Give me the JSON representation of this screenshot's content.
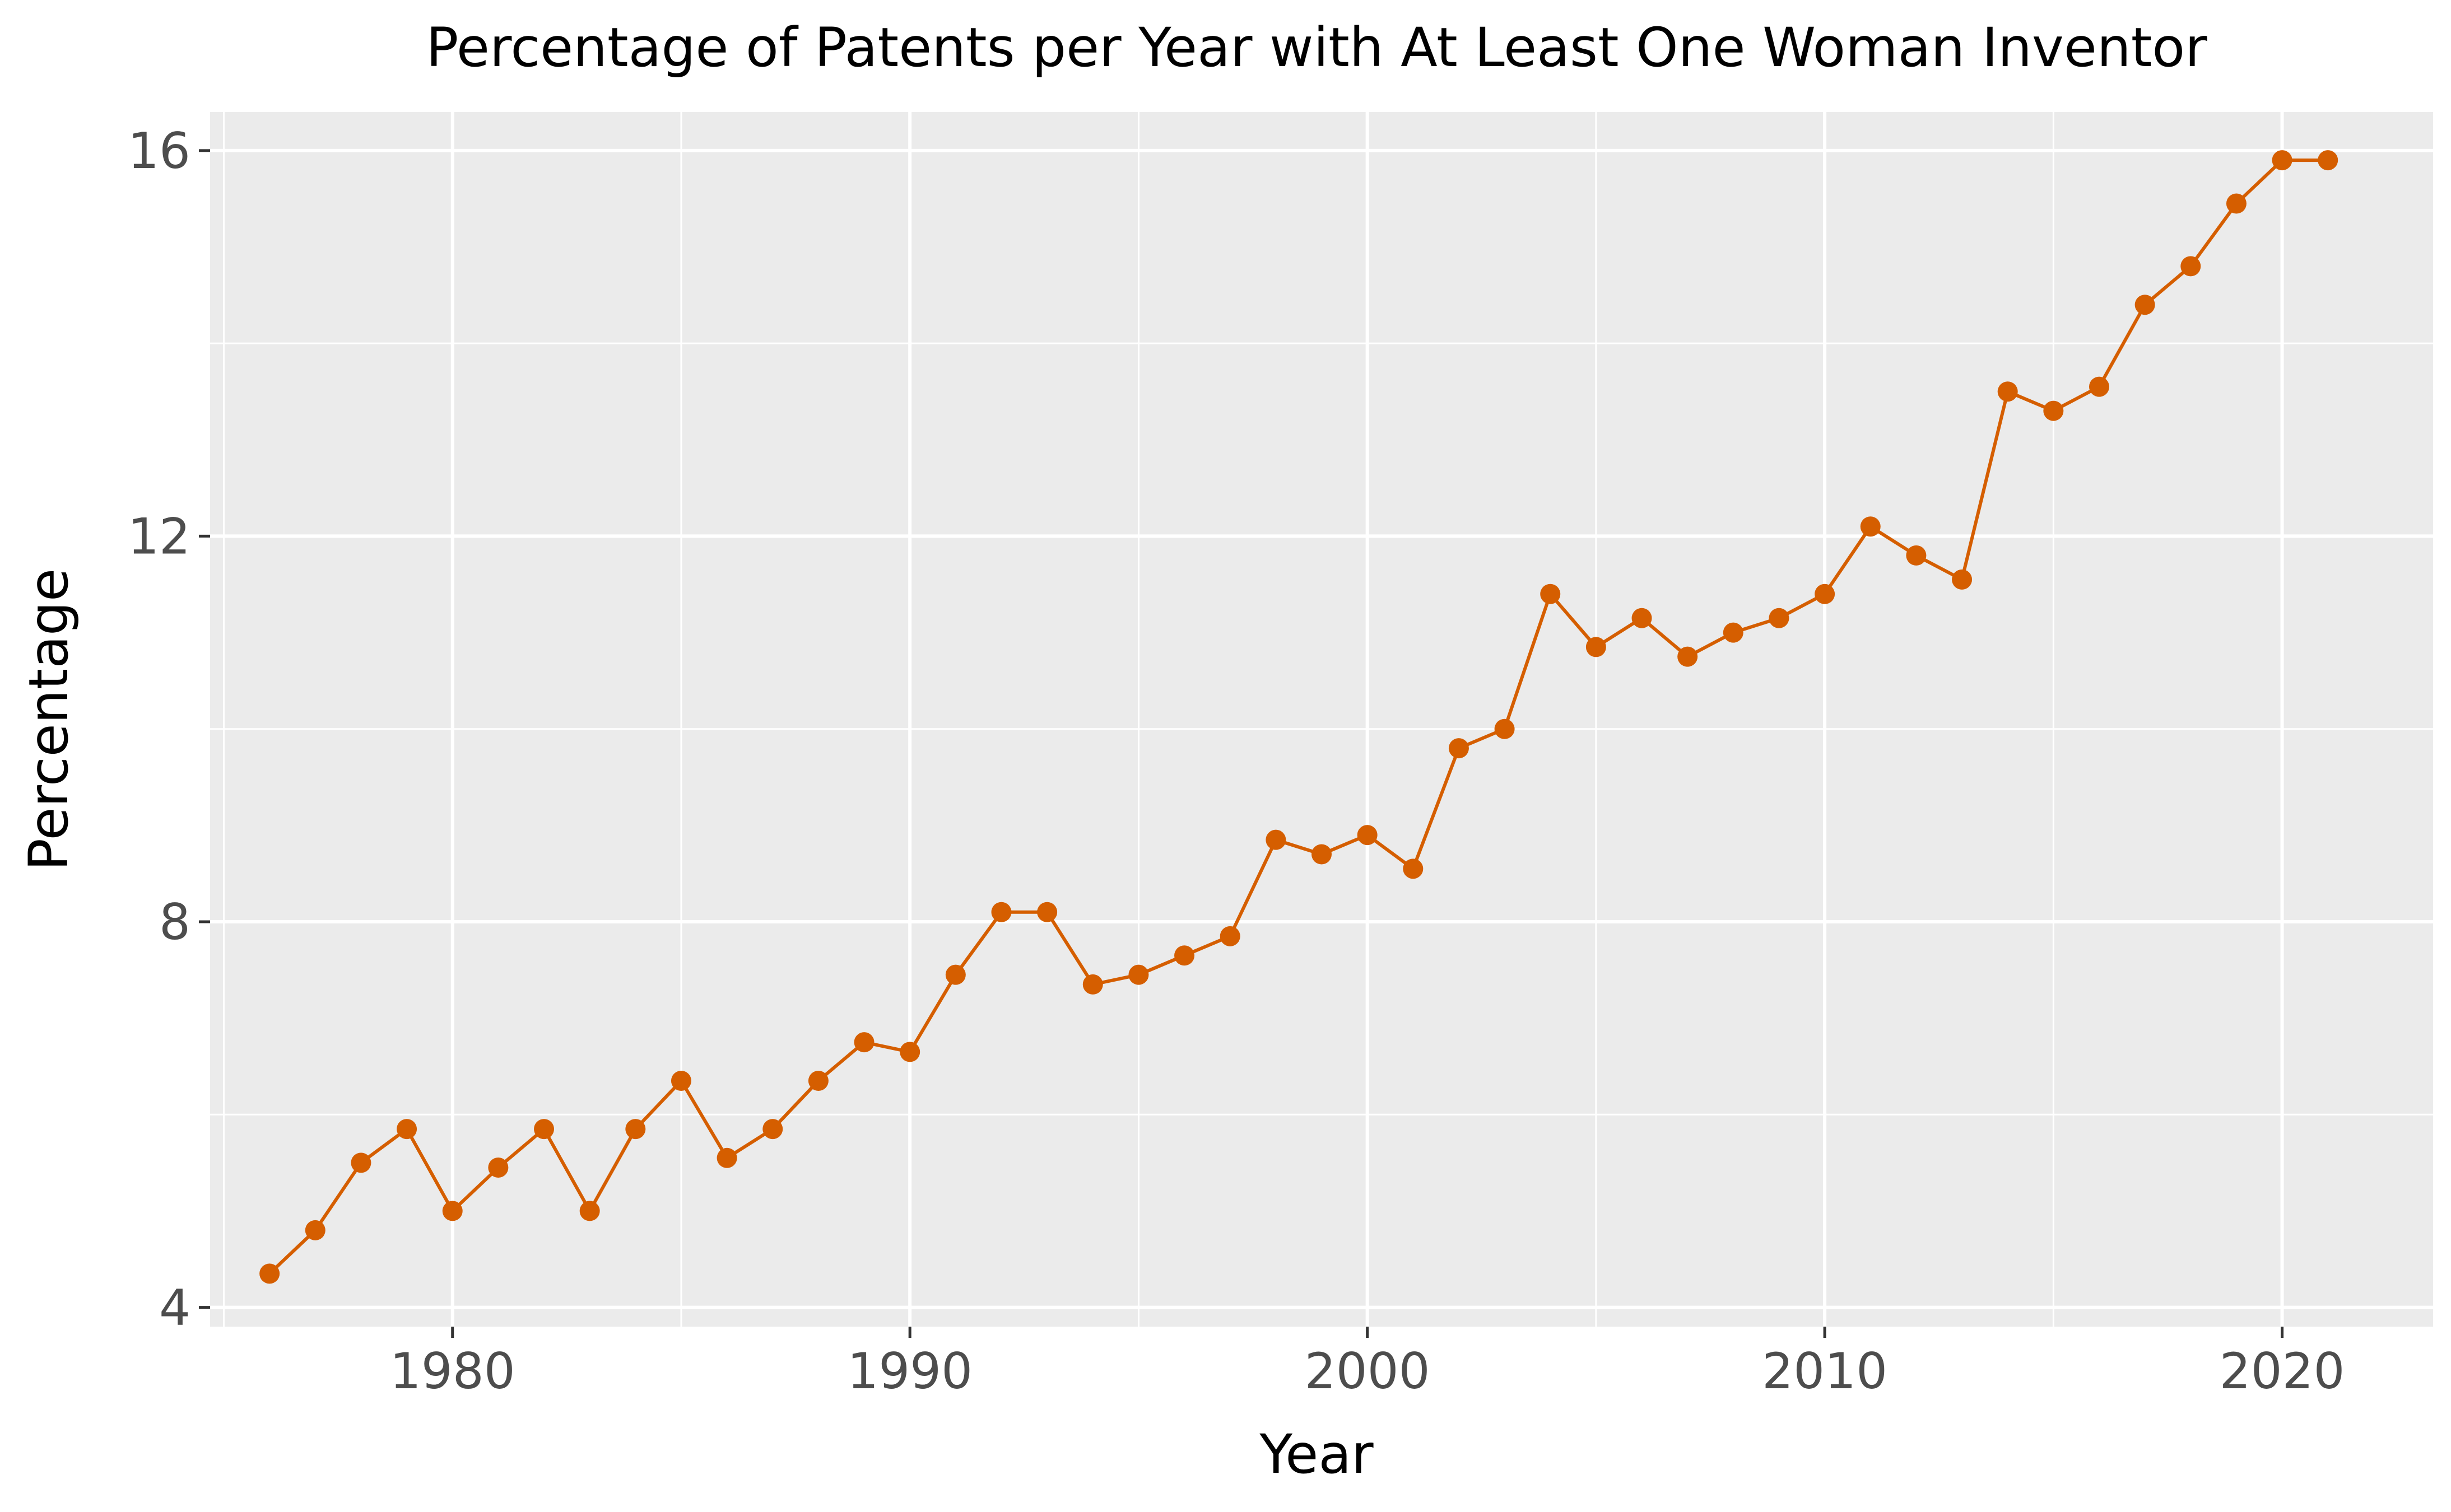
{
  "chart_data": {
    "type": "line",
    "title": "Percentage of Patents per Year with At Least One Woman Inventor",
    "xlabel": "Year",
    "ylabel": "Percentage",
    "xlim": [
      1974.7,
      2023.3
    ],
    "ylim": [
      3.8,
      16.4
    ],
    "x_ticks": [
      1980,
      1990,
      2000,
      2010,
      2020
    ],
    "y_ticks": [
      4,
      8,
      12,
      16
    ],
    "grid": true,
    "legend": "none",
    "colors": {
      "panel": "#EBEBEB",
      "grid": "#FFFFFF",
      "line": "#D55E00",
      "tick_text": "#4D4D4D"
    },
    "series": [
      {
        "x": [
          1976,
          1977,
          1978,
          1979,
          1980,
          1981,
          1982,
          1983,
          1984,
          1985,
          1986,
          1987,
          1988,
          1989,
          1990,
          1991,
          1992,
          1993,
          1994,
          1995,
          1996,
          1997,
          1998,
          1999,
          2000,
          2001,
          2002,
          2003,
          2004,
          2005,
          2006,
          2007,
          2008,
          2009,
          2010,
          2011,
          2012,
          2013,
          2014,
          2015,
          2016,
          2017,
          2018,
          2019,
          2020,
          2021
        ],
        "values": [
          4.35,
          4.8,
          5.5,
          5.85,
          5.0,
          5.45,
          5.85,
          5.0,
          5.85,
          6.35,
          5.55,
          5.85,
          6.35,
          6.75,
          6.65,
          7.45,
          8.1,
          8.1,
          7.35,
          7.45,
          7.65,
          7.85,
          8.85,
          8.7,
          8.9,
          8.55,
          9.8,
          10.0,
          11.4,
          10.85,
          11.15,
          10.75,
          11.0,
          11.15,
          11.4,
          12.1,
          11.8,
          11.55,
          13.5,
          13.3,
          13.55,
          14.4,
          14.8,
          15.45,
          15.9,
          15.9
        ]
      }
    ]
  }
}
